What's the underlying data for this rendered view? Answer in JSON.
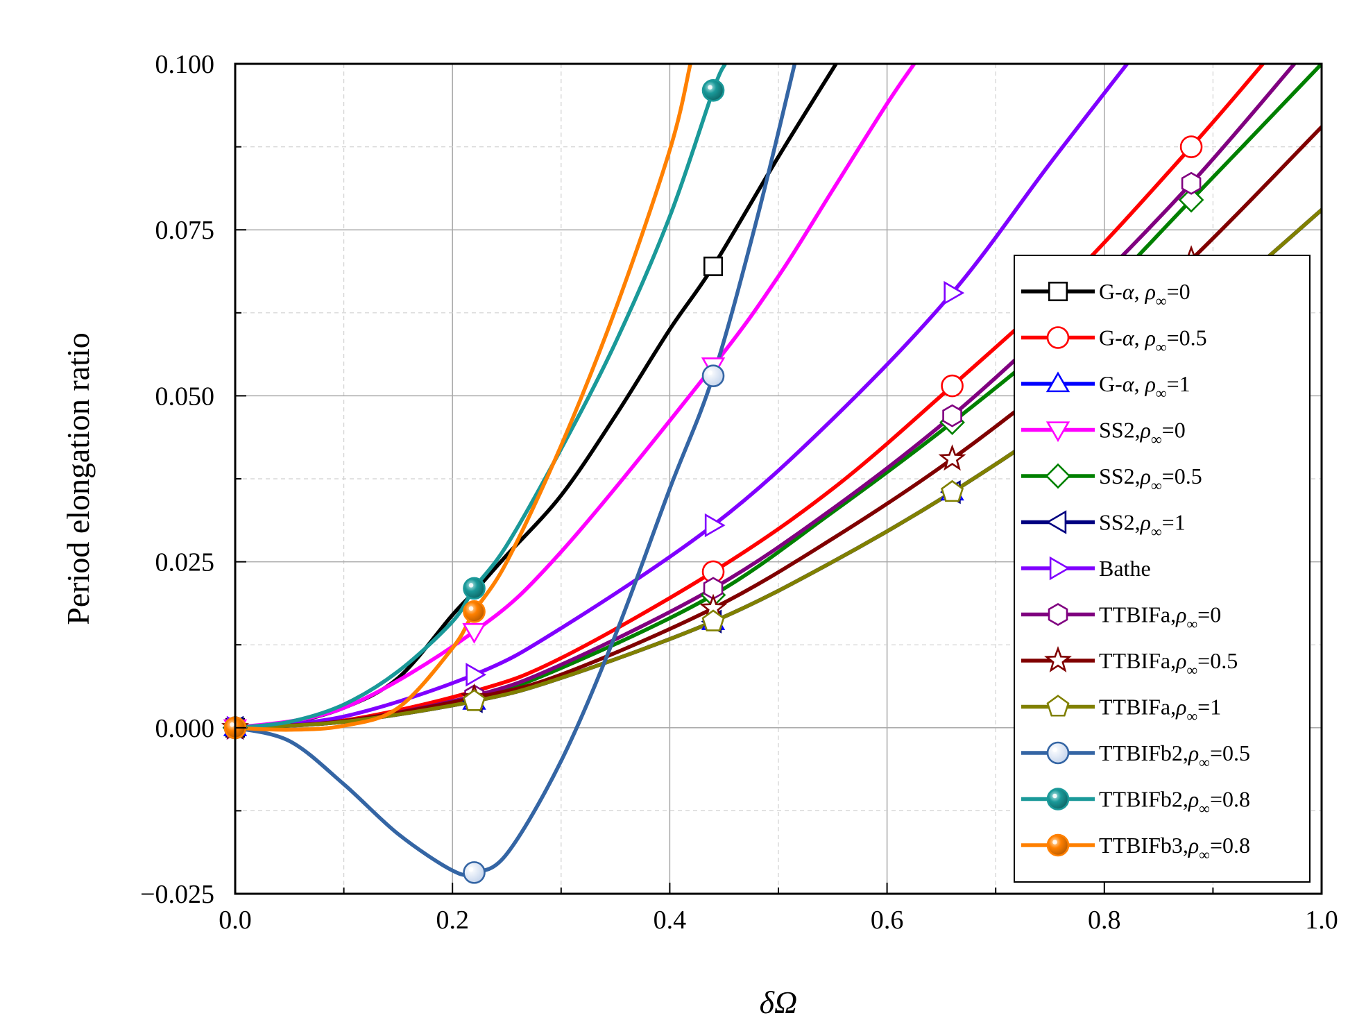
{
  "chart_data": {
    "type": "line",
    "title": "",
    "xlabel": "δΩ",
    "ylabel": "Period elongation ratio",
    "xlim": [
      0.0,
      1.0
    ],
    "ylim": [
      -0.025,
      0.1
    ],
    "grid": true,
    "legend_position": "right",
    "xticks": [
      {
        "value": 0.0,
        "label": "0.0"
      },
      {
        "value": 0.2,
        "label": "0.2"
      },
      {
        "value": 0.4,
        "label": "0.4"
      },
      {
        "value": 0.6,
        "label": "0.6"
      },
      {
        "value": 0.8,
        "label": "0.8"
      },
      {
        "value": 1.0,
        "label": "1.0"
      }
    ],
    "yticks": [
      {
        "value": -0.025,
        "label": "−0.025"
      },
      {
        "value": 0.0,
        "label": "0.000"
      },
      {
        "value": 0.025,
        "label": "0.025"
      },
      {
        "value": 0.05,
        "label": "0.050"
      },
      {
        "value": 0.075,
        "label": "0.075"
      },
      {
        "value": 0.1,
        "label": "0.100"
      }
    ],
    "series": [
      {
        "name": "G-α, ρ∞=0",
        "legend": {
          "prefix": "G-",
          "sym": "α",
          "sep": ", ",
          "rho": "ρ",
          "sub": "∞",
          "suffix": "=0"
        },
        "color": "#000000",
        "marker": "square",
        "marker_fill": "#ffffff",
        "x": [
          0,
          0.05,
          0.1,
          0.15,
          0.2,
          0.22,
          0.25,
          0.3,
          0.35,
          0.4,
          0.44,
          0.5,
          0.553
        ],
        "y": [
          0,
          0.0008,
          0.003,
          0.0075,
          0.017,
          0.0205,
          0.026,
          0.035,
          0.047,
          0.06,
          0.0695,
          0.086,
          0.1
        ],
        "marker_x": [
          0,
          0.44
        ]
      },
      {
        "name": "G-α, ρ∞=0.5",
        "legend": {
          "prefix": "G-",
          "sym": "α",
          "sep": ", ",
          "rho": "ρ",
          "sub": "∞",
          "suffix": "=0.5"
        },
        "color": "#ff0000",
        "marker": "circle",
        "marker_fill": "#ffffff",
        "x": [
          0,
          0.1,
          0.22,
          0.3,
          0.44,
          0.55,
          0.66,
          0.77,
          0.88,
          0.946
        ],
        "y": [
          0,
          0.0011,
          0.0055,
          0.0105,
          0.0235,
          0.036,
          0.0515,
          0.068,
          0.0875,
          0.1
        ],
        "marker_x": [
          0,
          0.44,
          0.66,
          0.88
        ]
      },
      {
        "name": "G-α, ρ∞=1",
        "legend": {
          "prefix": "G-",
          "sym": "α",
          "sep": ", ",
          "rho": "ρ",
          "sub": "∞",
          "suffix": "=1"
        },
        "color": "#0000ff",
        "marker": "triangle-up",
        "marker_fill": "#ffffff",
        "x": [
          0,
          0.1,
          0.22,
          0.3,
          0.44,
          0.55,
          0.66,
          0.77,
          0.88,
          1.0
        ],
        "y": [
          0,
          0.0009,
          0.004,
          0.0075,
          0.016,
          0.025,
          0.0355,
          0.0475,
          0.061,
          0.078
        ],
        "marker_x": [
          0,
          0.22,
          0.44,
          0.66
        ]
      },
      {
        "name": "SS2,ρ∞=0",
        "legend": {
          "prefix": "SS2,",
          "sym": "",
          "sep": "",
          "rho": "ρ",
          "sub": "∞",
          "suffix": "=0"
        },
        "color": "#ff00ff",
        "marker": "triangle-down",
        "marker_fill": "#ffffff",
        "x": [
          0,
          0.1,
          0.22,
          0.3,
          0.44,
          0.5,
          0.55,
          0.6,
          0.625
        ],
        "y": [
          0,
          0.003,
          0.0145,
          0.0265,
          0.0545,
          0.068,
          0.081,
          0.094,
          0.1
        ],
        "marker_x": [
          0,
          0.22,
          0.44
        ]
      },
      {
        "name": "SS2,ρ∞=0.5",
        "legend": {
          "prefix": "SS2,",
          "sym": "",
          "sep": "",
          "rho": "ρ",
          "sub": "∞",
          "suffix": "=0.5"
        },
        "color": "#008000",
        "marker": "diamond",
        "marker_fill": "#ffffff",
        "x": [
          0,
          0.1,
          0.22,
          0.3,
          0.44,
          0.55,
          0.66,
          0.77,
          0.88,
          1.0
        ],
        "y": [
          0,
          0.001,
          0.0045,
          0.009,
          0.02,
          0.0325,
          0.046,
          0.061,
          0.0795,
          0.1
        ],
        "marker_x": [
          0,
          0.44,
          0.66,
          0.88
        ]
      },
      {
        "name": "SS2,ρ∞=1",
        "legend": {
          "prefix": "SS2,",
          "sym": "",
          "sep": "",
          "rho": "ρ",
          "sub": "∞",
          "suffix": "=1"
        },
        "color": "#000080",
        "marker": "triangle-left",
        "marker_fill": "#ffffff",
        "x": [
          0,
          0.1,
          0.22,
          0.3,
          0.44,
          0.55,
          0.66,
          0.77,
          0.88,
          1.0
        ],
        "y": [
          0,
          0.0009,
          0.004,
          0.0075,
          0.016,
          0.025,
          0.0355,
          0.0475,
          0.061,
          0.078
        ],
        "marker_x": [
          0,
          0.22,
          0.44,
          0.66
        ]
      },
      {
        "name": "Bathe",
        "legend": {
          "prefix": "Bathe",
          "sym": "",
          "sep": "",
          "rho": "",
          "sub": "",
          "suffix": ""
        },
        "color": "#8000ff",
        "marker": "triangle-right",
        "marker_fill": "#ffffff",
        "x": [
          0,
          0.1,
          0.22,
          0.3,
          0.44,
          0.55,
          0.66,
          0.75,
          0.821
        ],
        "y": [
          0,
          0.0017,
          0.008,
          0.015,
          0.0305,
          0.0465,
          0.0655,
          0.085,
          0.1
        ],
        "marker_x": [
          0,
          0.22,
          0.44,
          0.66
        ]
      },
      {
        "name": "TTBIFa,ρ∞=0",
        "legend": {
          "prefix": "TTBIFa,",
          "sym": "",
          "sep": "",
          "rho": "ρ",
          "sub": "∞",
          "suffix": "=0"
        },
        "color": "#800080",
        "marker": "hexagon",
        "marker_fill": "#ffffff",
        "x": [
          0,
          0.1,
          0.22,
          0.3,
          0.44,
          0.55,
          0.66,
          0.77,
          0.88,
          0.975
        ],
        "y": [
          0,
          0.001,
          0.0048,
          0.0095,
          0.021,
          0.033,
          0.047,
          0.0635,
          0.082,
          0.1
        ],
        "marker_x": [
          0,
          0.22,
          0.44,
          0.66,
          0.88
        ]
      },
      {
        "name": "TTBIFa,ρ∞=0.5",
        "legend": {
          "prefix": "TTBIFa,",
          "sym": "",
          "sep": "",
          "rho": "ρ",
          "sub": "∞",
          "suffix": "=0.5"
        },
        "color": "#800000",
        "marker": "star",
        "marker_fill": "#ffffff",
        "x": [
          0,
          0.1,
          0.22,
          0.3,
          0.44,
          0.55,
          0.66,
          0.77,
          0.88,
          1.0
        ],
        "y": [
          0,
          0.001,
          0.0045,
          0.008,
          0.018,
          0.0285,
          0.0405,
          0.0545,
          0.0705,
          0.0905
        ],
        "marker_x": [
          0,
          0.22,
          0.44,
          0.66,
          0.88
        ]
      },
      {
        "name": "TTBIFa,ρ∞=1",
        "legend": {
          "prefix": "TTBIFa,",
          "sym": "",
          "sep": "",
          "rho": "ρ",
          "sub": "∞",
          "suffix": "=1"
        },
        "color": "#808000",
        "marker": "pentagon",
        "marker_fill": "#ffffff",
        "x": [
          0,
          0.1,
          0.22,
          0.3,
          0.44,
          0.55,
          0.66,
          0.77,
          0.88,
          1.0
        ],
        "y": [
          0,
          0.0009,
          0.004,
          0.0075,
          0.016,
          0.025,
          0.0355,
          0.0475,
          0.061,
          0.078
        ],
        "marker_x": [
          0,
          0.22,
          0.44,
          0.66
        ]
      },
      {
        "name": "TTBIFb2,ρ∞=0.5",
        "legend": {
          "prefix": "TTBIFb2,",
          "sym": "",
          "sep": "",
          "rho": "ρ",
          "sub": "∞",
          "suffix": "=0.5"
        },
        "color": "#3465a4",
        "marker": "ball",
        "marker_fill": "#ffffff",
        "x": [
          0,
          0.05,
          0.1,
          0.15,
          0.2,
          0.22,
          0.25,
          0.3,
          0.35,
          0.4,
          0.44,
          0.48,
          0.515
        ],
        "y": [
          0,
          -0.002,
          -0.0085,
          -0.016,
          -0.0215,
          -0.0218,
          -0.019,
          -0.005,
          0.014,
          0.036,
          0.053,
          0.0765,
          0.1
        ],
        "marker_x": [
          0.22,
          0.44
        ]
      },
      {
        "name": "TTBIFb2,ρ∞=0.8",
        "legend": {
          "prefix": "TTBIFb2,",
          "sym": "",
          "sep": "",
          "rho": "ρ",
          "sub": "∞",
          "suffix": "=0.8"
        },
        "color": "#1a9999",
        "marker": "ball",
        "marker_fill": "#1a9999",
        "x": [
          0,
          0.05,
          0.1,
          0.15,
          0.2,
          0.22,
          0.25,
          0.3,
          0.35,
          0.4,
          0.44,
          0.451
        ],
        "y": [
          0,
          0.0009,
          0.0035,
          0.0085,
          0.016,
          0.021,
          0.0275,
          0.042,
          0.058,
          0.077,
          0.096,
          0.1
        ],
        "marker_x": [
          0,
          0.22,
          0.44
        ]
      },
      {
        "name": "TTBIFb3,ρ∞=0.8",
        "legend": {
          "prefix": "TTBIFb3,",
          "sym": "",
          "sep": "",
          "rho": "ρ",
          "sub": "∞",
          "suffix": "=0.8"
        },
        "color": "#ff8000",
        "marker": "ball",
        "marker_fill": "#ff8000",
        "x": [
          0,
          0.05,
          0.1,
          0.15,
          0.2,
          0.22,
          0.25,
          0.3,
          0.35,
          0.4,
          0.419
        ],
        "y": [
          0,
          -0.0003,
          0.0003,
          0.003,
          0.012,
          0.0175,
          0.025,
          0.0425,
          0.063,
          0.087,
          0.1
        ],
        "marker_x": [
          0,
          0.22
        ]
      }
    ]
  }
}
